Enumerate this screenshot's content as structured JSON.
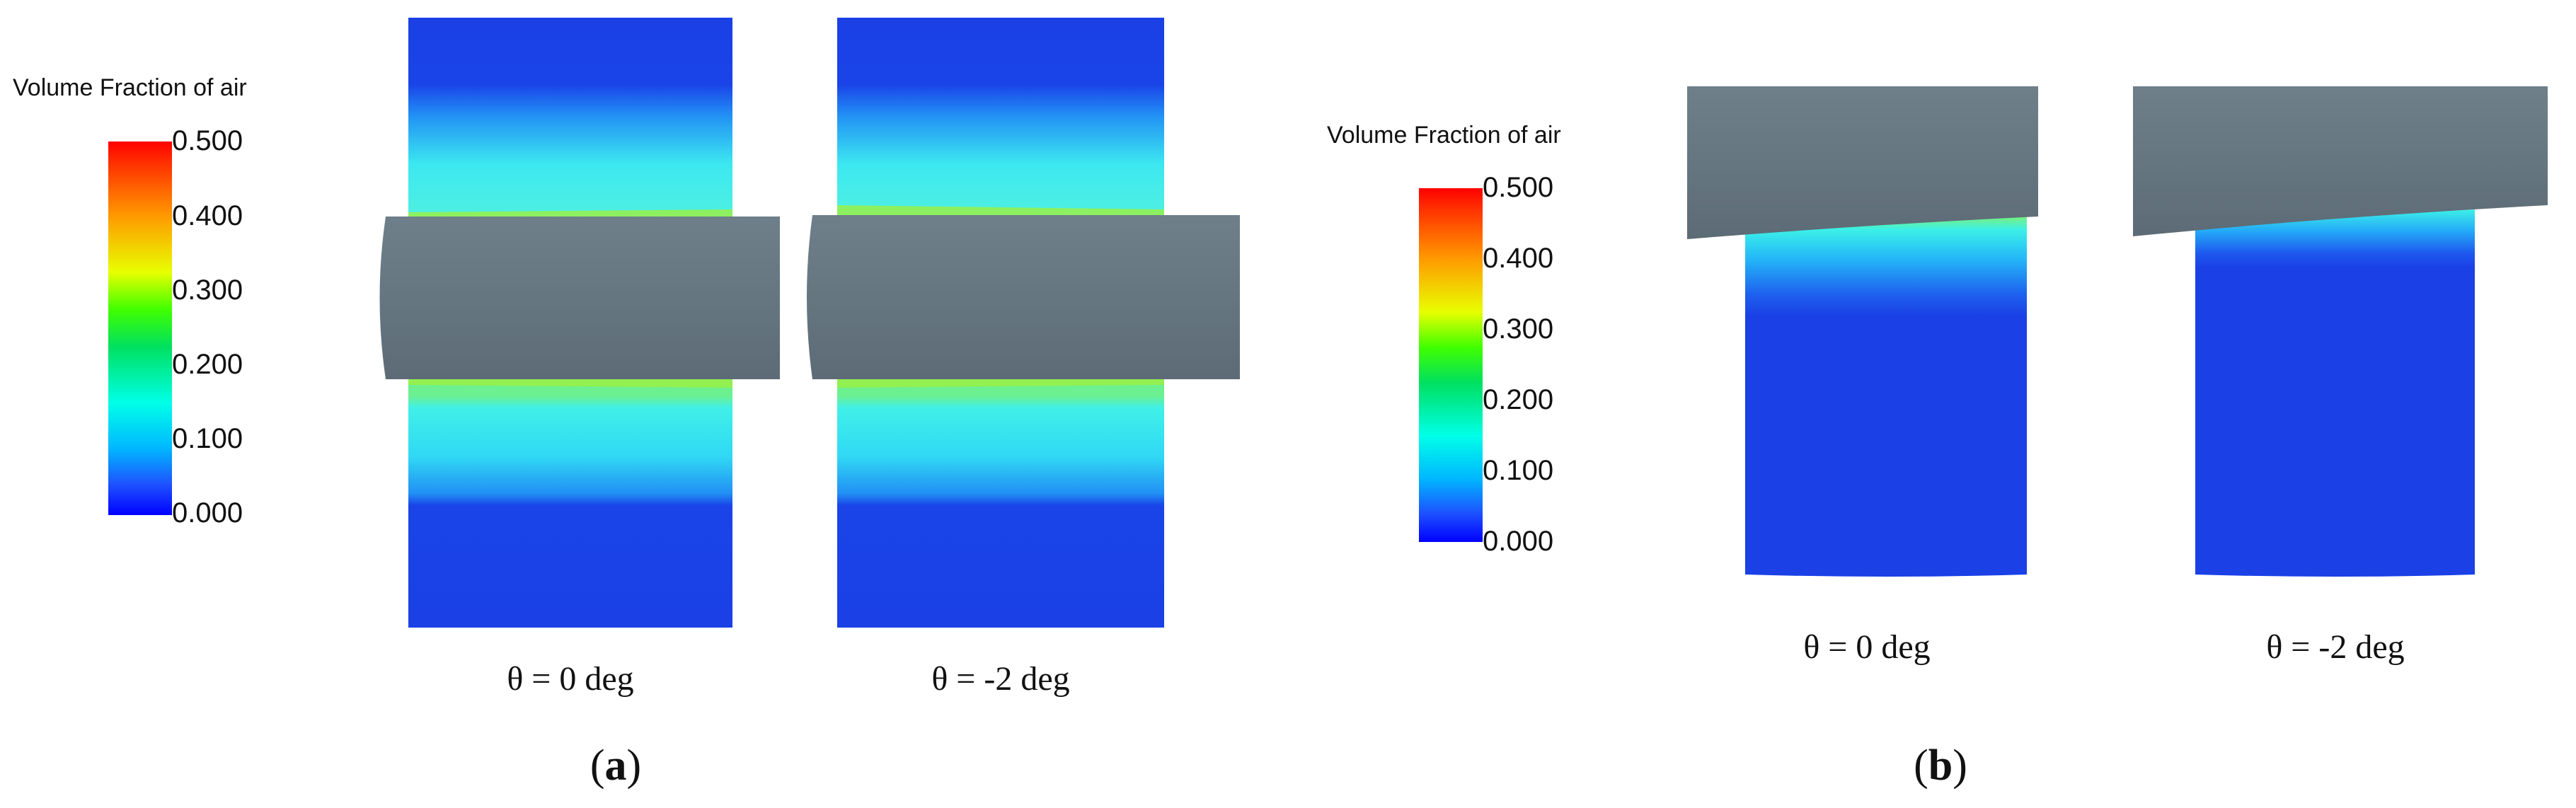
{
  "colorbar": {
    "title": "Volume Fraction of air",
    "ticks": [
      "0.500",
      "0.400",
      "0.300",
      "0.200",
      "0.100",
      "0.000"
    ],
    "range": [
      0.0,
      0.5
    ],
    "colors": [
      "#ff0000",
      "#ff8a00",
      "#ffff00",
      "#00e000",
      "#00ffe0",
      "#00a0ff",
      "#0000ff"
    ]
  },
  "panel_a": {
    "label_open": "(",
    "label_letter": "a",
    "label_close": ")",
    "views": [
      {
        "caption": "θ = 0 deg"
      },
      {
        "caption": "θ = -2 deg"
      }
    ]
  },
  "panel_b": {
    "label_open": "(",
    "label_letter": "b",
    "label_close": ")",
    "views": [
      {
        "caption": "θ = 0 deg"
      },
      {
        "caption": "θ = -2 deg"
      }
    ]
  },
  "colors": {
    "shaft": "#687985",
    "deep_blue": "#1a40e6",
    "background": "#ffffff"
  }
}
